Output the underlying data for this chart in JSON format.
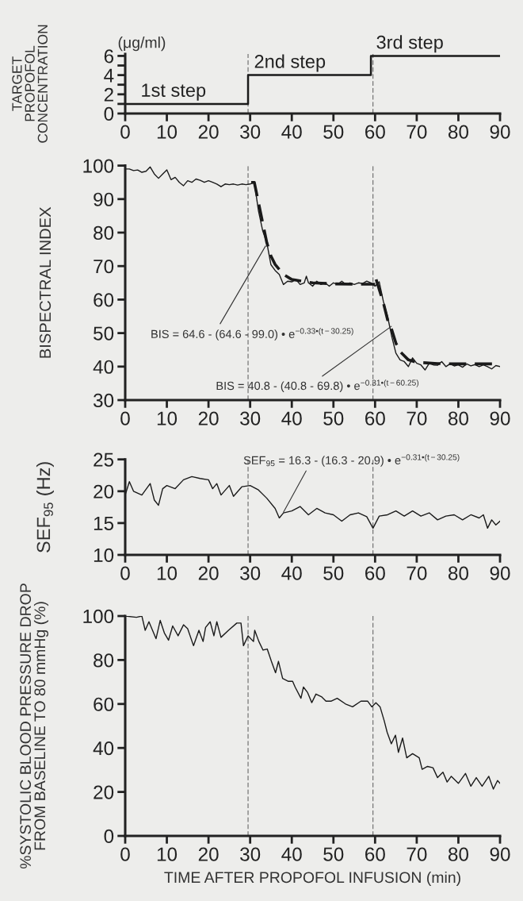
{
  "chart_data": [
    {
      "type": "step",
      "ylabel": "TARGET\nPROPOFOL\nCONCENTRATION",
      "xlim": [
        0,
        90
      ],
      "xticks": [
        0,
        10,
        20,
        30,
        40,
        50,
        60,
        70,
        80,
        90
      ],
      "ylim": [
        0,
        6.2
      ],
      "yticks": [
        0,
        {
          "value": 1,
          "label": null
        },
        2,
        {
          "value": 3,
          "label": null
        },
        4,
        {
          "value": 5,
          "label": null
        },
        6
      ],
      "x": [
        0,
        29.5,
        59,
        90
      ],
      "series": [
        {
          "color": "#1a1a1a",
          "values": [
            1,
            4,
            6,
            6
          ]
        }
      ],
      "annotations": [
        "(μg/ml)",
        {
          "text": "1st step",
          "x": 3.7,
          "y": 1
        },
        {
          "text": "2nd step",
          "x": 30.4,
          "y": 4
        },
        {
          "text": "3rd step",
          "x": 59.7,
          "y": 6
        }
      ],
      "ref_lines": [
        {
          "axis": "x",
          "value": 29.5,
          "color": "#555555",
          "line_style": "dashed"
        },
        {
          "axis": "x",
          "value": 59.5,
          "color": "#555555",
          "line_style": "dashed"
        }
      ],
      "grid": false,
      "legend": false
    },
    {
      "type": "line",
      "ylabel": "BISPECTRAL INDEX",
      "xlim": [
        0,
        90
      ],
      "xticks": [
        0,
        10,
        20,
        30,
        40,
        50,
        60,
        70,
        80,
        90
      ],
      "ylim": [
        30,
        100
      ],
      "yticks": [
        30,
        40,
        50,
        60,
        70,
        80,
        90,
        100
      ],
      "series": [
        {
          "color": "#1a1a1a",
          "line_style": "dashed",
          "x": [
            30.25,
            31,
            32,
            33,
            34,
            35,
            36,
            38,
            40,
            45,
            50,
            55,
            60
          ],
          "values": [
            95,
            95,
            89,
            83,
            77,
            73,
            70.5,
            67.5,
            66,
            65,
            64.7,
            64.6,
            64.6
          ]
        },
        {
          "color": "#1a1a1a",
          "line_style": "dashed",
          "x": [
            60.25,
            61,
            62,
            63,
            64,
            65,
            66,
            68,
            70,
            75,
            80,
            90
          ],
          "values": [
            66,
            63,
            59,
            54,
            51,
            47,
            44.5,
            42,
            41.3,
            40.9,
            40.8,
            40.8
          ]
        },
        {
          "color": "#1a1a1a",
          "line_style": "solid",
          "x": [
            0,
            1,
            2,
            3,
            4,
            5,
            6,
            7,
            8,
            9,
            10,
            11,
            12,
            13,
            14,
            15,
            16,
            17,
            18,
            19,
            20,
            21,
            22,
            23,
            24,
            25,
            26,
            27,
            28,
            29,
            30,
            31,
            32,
            33,
            34,
            35,
            36,
            37,
            38,
            39,
            40,
            41,
            42,
            43,
            43.5,
            44,
            45,
            46,
            47,
            48,
            49,
            50,
            51,
            52,
            53,
            54,
            55,
            56,
            57,
            58,
            59,
            60,
            61,
            62,
            63,
            64,
            65,
            66,
            67,
            68,
            69,
            70,
            71,
            72,
            73,
            74,
            75,
            76,
            77,
            78,
            79,
            80,
            81,
            82,
            83,
            84,
            85,
            86,
            87,
            88,
            89,
            90
          ],
          "values": [
            99,
            99,
            98.5,
            98.7,
            98,
            98.3,
            99.6,
            97.5,
            96.2,
            97.5,
            98.7,
            95.8,
            96.5,
            95,
            94,
            95.5,
            95,
            96,
            95.6,
            95,
            95.5,
            95,
            94.5,
            93.7,
            94.5,
            94.3,
            94.5,
            94.2,
            94.5,
            94.3,
            94.5,
            95,
            86.5,
            80.6,
            77,
            70.4,
            68.7,
            67.5,
            64.5,
            65.5,
            65.3,
            66,
            64.5,
            65,
            67,
            65,
            64,
            65.5,
            64.5,
            65,
            64,
            65,
            64.5,
            65.5,
            64.5,
            65,
            64.5,
            65,
            64.8,
            65.5,
            65,
            64,
            65.3,
            59.4,
            55,
            49,
            44,
            42,
            41.5,
            40,
            42.6,
            41,
            40.5,
            39,
            41,
            40.5,
            40.4,
            41.5,
            40,
            40.8,
            40.2,
            40.5,
            39.8,
            40.8,
            40.2,
            40.6,
            40,
            40.5,
            40,
            39.3,
            40.3,
            40
          ]
        }
      ],
      "annotations": [
        {
          "text": "BIS = 64.6 - (64.6 - 99.0) • e$^{−0.33•(t−30.25)}$",
          "x": 33.7,
          "y": 76
        },
        {
          "text": "BIS = 40.8 - (40.8 - 69.8) • e$^{−0.31•(t−60.25)}$",
          "x": 63.9,
          "y": 52
        }
      ],
      "ref_lines": [
        {
          "axis": "x",
          "value": 29.5,
          "color": "#555555",
          "line_style": "dashed"
        },
        {
          "axis": "x",
          "value": 59.5,
          "color": "#555555",
          "line_style": "dashed"
        }
      ],
      "grid": false,
      "legend": false
    },
    {
      "type": "line",
      "ylabel": "SEF$_{95}$ (Hz)",
      "xlim": [
        0,
        90
      ],
      "xticks": [
        0,
        10,
        20,
        30,
        40,
        50,
        60,
        70,
        80,
        90
      ],
      "ylim": [
        10,
        25
      ],
      "yticks": [
        10,
        15,
        20,
        25
      ],
      "series": [
        {
          "color": "#1a1a1a",
          "line_style": "solid",
          "x": [
            0,
            1,
            2,
            4,
            6,
            7,
            8,
            9,
            10,
            12,
            14,
            16,
            18,
            20,
            21,
            22,
            23,
            25,
            26,
            28,
            30,
            32,
            34,
            36,
            37,
            38,
            40,
            42,
            44,
            46,
            48,
            50,
            52,
            54,
            56,
            58,
            59.5,
            61,
            63,
            65,
            67,
            69,
            71,
            73,
            75,
            77,
            79,
            81,
            83,
            85,
            86,
            87,
            88,
            89,
            90
          ],
          "values": [
            19.4,
            21.5,
            20,
            19.4,
            21.2,
            18.6,
            17.8,
            20.4,
            20.9,
            20.4,
            21.8,
            22.3,
            22,
            21.8,
            20.4,
            21.2,
            19.4,
            20.9,
            19.2,
            20.7,
            20.9,
            20.2,
            18.9,
            17.3,
            15.8,
            16.6,
            16.9,
            17.6,
            16.3,
            17.3,
            16.6,
            16.3,
            15.3,
            16.3,
            16.6,
            16,
            14.2,
            16.1,
            16.3,
            16.9,
            16.1,
            16.9,
            16.1,
            16.6,
            15.5,
            16.1,
            16.3,
            15.5,
            16.3,
            15.8,
            16.3,
            14.2,
            15.5,
            14.7,
            15.3
          ]
        }
      ],
      "annotations": [
        {
          "text": "SEF$_{95}$ = 16.3 - (16.3 - 20.9) • e$^{−0.31•(t−30.25)}$",
          "x": 38,
          "y": 16.7
        }
      ],
      "ref_lines": [
        {
          "axis": "x",
          "value": 29.5,
          "color": "#555555",
          "line_style": "dashed"
        },
        {
          "axis": "x",
          "value": 59.5,
          "color": "#555555",
          "line_style": "dashed"
        }
      ],
      "grid": false,
      "legend": false
    },
    {
      "type": "line",
      "xlabel": "TIME AFTER PROPOFOL INFUSION (min)",
      "ylabel": "%SYSTOLIC BLOOD PRESSURE DROP\nFROM BASELINE TO 80 mmHg (%)",
      "xlim": [
        0,
        90
      ],
      "xticks": [
        0,
        10,
        20,
        30,
        40,
        50,
        60,
        70,
        80,
        90
      ],
      "ylim": [
        0,
        100
      ],
      "yticks": [
        0,
        20,
        40,
        60,
        80,
        100
      ],
      "series": [
        {
          "color": "#1a1a1a",
          "line_style": "solid",
          "x": [
            0,
            2.7,
            4,
            4.8,
            5.7,
            7.4,
            8.4,
            9.4,
            10.4,
            11.4,
            12.7,
            14,
            15,
            16.4,
            17.7,
            18.7,
            19.3,
            20.4,
            21.3,
            22,
            23,
            24.8,
            26.8,
            27.8,
            28.4,
            29.5,
            30.8,
            31.1,
            32.1,
            33.1,
            34.1,
            35.1,
            36.1,
            36.8,
            37.8,
            39.2,
            40.2,
            40.8,
            42.2,
            42.8,
            43.8,
            44.8,
            45.8,
            47.2,
            48.2,
            49.5,
            50.9,
            52.9,
            54.6,
            56.6,
            58.2,
            59.2,
            60.2,
            61.2,
            62.2,
            62.9,
            63.9,
            64.9,
            65.6,
            66.6,
            67.6,
            69,
            70.6,
            71.3,
            72.6,
            73.9,
            75,
            76.3,
            77.3,
            78.3,
            80,
            81.7,
            83,
            84.3,
            85.7,
            87.3,
            88.4,
            89.4,
            90
          ],
          "values": [
            100,
            99.4,
            100,
            93.5,
            97.4,
            89.7,
            98,
            92.3,
            89,
            95.5,
            91,
            96,
            94.2,
            86.5,
            93.5,
            88.4,
            94.8,
            97.4,
            91,
            97.4,
            90.3,
            93.5,
            96.8,
            96.8,
            86.5,
            91,
            88.4,
            93.5,
            88.4,
            84.5,
            85,
            79.4,
            74.2,
            79.4,
            71.6,
            70.3,
            70.3,
            67.7,
            62.6,
            67.7,
            65.2,
            60.6,
            64.5,
            63.2,
            61.3,
            61.3,
            62.6,
            60,
            58.7,
            61.3,
            61.3,
            58.7,
            60.6,
            58.7,
            52.3,
            47.1,
            41.9,
            45.8,
            38,
            44.5,
            35.5,
            37.4,
            35.5,
            30.3,
            31.6,
            31,
            26.5,
            29,
            24.5,
            27.1,
            23.9,
            28.4,
            22.6,
            26.5,
            22.6,
            27.1,
            21.3,
            25.2,
            23.9
          ]
        }
      ],
      "ref_lines": [
        {
          "axis": "x",
          "value": 29.5,
          "color": "#555555",
          "line_style": "dashed"
        },
        {
          "axis": "x",
          "value": 59.5,
          "color": "#555555",
          "line_style": "dashed"
        }
      ],
      "grid": false,
      "legend": false
    }
  ]
}
